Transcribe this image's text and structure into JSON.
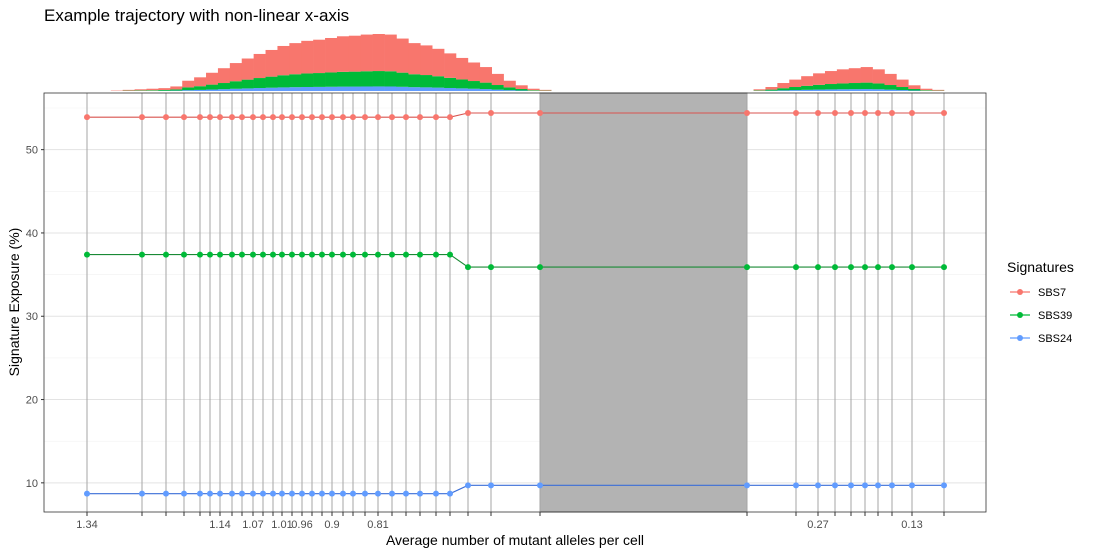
{
  "chart_data": {
    "type": "line",
    "title": "Example trajectory with non-linear x-axis",
    "xlabel": "Average number of mutant alleles per cell",
    "ylabel": "Signature Exposure (%)",
    "ylim": [
      6.5,
      56.8
    ],
    "y_ticks": [
      10,
      20,
      30,
      40,
      50
    ],
    "grid": true,
    "legend_position": "right",
    "legend_title": "Signatures",
    "x_tick_labels": [
      {
        "index": 0,
        "label": "1.34"
      },
      {
        "index": 6,
        "label": "1.14"
      },
      {
        "index": 9,
        "label": "1.07"
      },
      {
        "index": 12,
        "label": "1.01"
      },
      {
        "index": 14,
        "label": "0.96"
      },
      {
        "index": 17,
        "label": "0.9"
      },
      {
        "index": 21,
        "label": "0.81"
      },
      {
        "index": 32,
        "label": "0.27"
      },
      {
        "index": 38,
        "label": "0.13"
      }
    ],
    "segments": [
      {
        "from_index": 0,
        "to_index": 26
      },
      {
        "from_index": 28,
        "to_index": 39
      }
    ],
    "gap_region": {
      "from_index": 26,
      "to_index": 28
    },
    "histogram_density": [
      0,
      0,
      0.01,
      0.02,
      0.03,
      0.04,
      0.05,
      0.08,
      0.18,
      0.24,
      0.32,
      0.4,
      0.49,
      0.57,
      0.65,
      0.72,
      0.79,
      0.84,
      0.88,
      0.9,
      0.93,
      0.96,
      0.97,
      0.99,
      1.0,
      0.99,
      0.92,
      0.84,
      0.8,
      0.74,
      0.66,
      0.58,
      0.5,
      0.42,
      0.3,
      0.18,
      0.1,
      0.04,
      0.02,
      0.01,
      0,
      0,
      0,
      0,
      0,
      0,
      0,
      0,
      0,
      0,
      0,
      0,
      0,
      0,
      0.01,
      0.02,
      0.03,
      0.07,
      0.14,
      0.2,
      0.26,
      0.31,
      0.35,
      0.38,
      0.4,
      0.42,
      0.38,
      0.3,
      0.2,
      0.1,
      0.04,
      0.02
    ],
    "series": [
      {
        "name": "SBS7",
        "color": "#f8766d",
        "line_color": "#d9534f",
        "y": [
          53.9,
          53.9,
          53.9,
          53.9,
          53.9,
          53.9,
          53.9,
          53.9,
          53.9,
          53.9,
          53.9,
          53.9,
          53.9,
          53.9,
          53.9,
          53.9,
          53.9,
          53.9,
          53.9,
          53.9,
          53.9,
          53.9,
          53.9,
          53.9,
          53.9,
          53.9,
          53.9,
          54.4,
          54.4,
          54.4,
          54.4,
          54.4,
          54.4,
          54.4,
          54.4,
          54.4,
          54.4,
          54.4,
          54.4,
          54.4
        ]
      },
      {
        "name": "SBS39",
        "color": "#00ba38",
        "line_color": "#1a8a35",
        "y": [
          37.4,
          37.4,
          37.4,
          37.4,
          37.4,
          37.4,
          37.4,
          37.4,
          37.4,
          37.4,
          37.4,
          37.4,
          37.4,
          37.4,
          37.4,
          37.4,
          37.4,
          37.4,
          37.4,
          37.4,
          37.4,
          37.4,
          37.4,
          37.4,
          37.4,
          37.4,
          37.4,
          35.9,
          35.9,
          35.9,
          35.9,
          35.9,
          35.9,
          35.9,
          35.9,
          35.9,
          35.9,
          35.9,
          35.9,
          35.9
        ]
      },
      {
        "name": "SBS24",
        "color": "#619cff",
        "line_color": "#3b6ed8",
        "y": [
          8.7,
          8.7,
          8.7,
          8.7,
          8.7,
          8.7,
          8.7,
          8.7,
          8.7,
          8.7,
          8.7,
          8.7,
          8.7,
          8.7,
          8.7,
          8.7,
          8.7,
          8.7,
          8.7,
          8.7,
          8.7,
          8.7,
          8.7,
          8.7,
          8.7,
          8.7,
          8.7,
          9.7,
          9.7,
          9.7,
          9.7,
          9.7,
          9.7,
          9.7,
          9.7,
          9.7,
          9.7,
          9.7,
          9.7,
          9.7
        ]
      }
    ]
  }
}
